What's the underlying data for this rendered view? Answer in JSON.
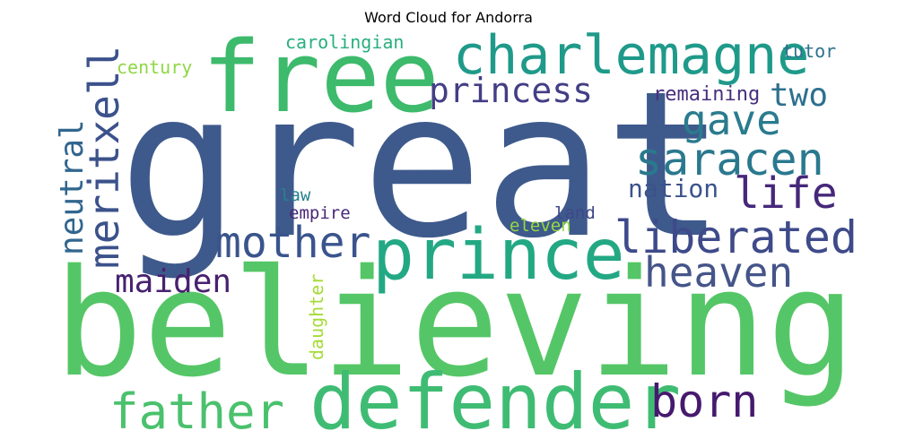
{
  "chart_data": {
    "type": "wordcloud",
    "title": "Word Cloud for Andorra",
    "words": [
      {
        "text": "great",
        "weight": 1.0,
        "orientation": "horizontal",
        "color": "#3e5a8c"
      },
      {
        "text": "believing",
        "weight": 0.9,
        "orientation": "horizontal",
        "color": "#55c667"
      },
      {
        "text": "free",
        "weight": 0.6,
        "orientation": "horizontal",
        "color": "#3dba6c"
      },
      {
        "text": "defender",
        "weight": 0.55,
        "orientation": "horizontal",
        "color": "#3fbc73"
      },
      {
        "text": "prince",
        "weight": 0.5,
        "orientation": "horizontal",
        "color": "#23a884"
      },
      {
        "text": "charlemagne",
        "weight": 0.4,
        "orientation": "horizontal",
        "color": "#1f9a8a"
      },
      {
        "text": "meritxell",
        "weight": 0.36,
        "orientation": "vertical",
        "color": "#3b528b"
      },
      {
        "text": "father",
        "weight": 0.32,
        "orientation": "horizontal",
        "color": "#4ac16d"
      },
      {
        "text": "liberated",
        "weight": 0.3,
        "orientation": "horizontal",
        "color": "#3e4a89"
      },
      {
        "text": "mother",
        "weight": 0.3,
        "orientation": "horizontal",
        "color": "#3a548c"
      },
      {
        "text": "saracen",
        "weight": 0.3,
        "orientation": "horizontal",
        "color": "#2a788e"
      },
      {
        "text": "heaven",
        "weight": 0.28,
        "orientation": "horizontal",
        "color": "#45558a"
      },
      {
        "text": "born",
        "weight": 0.28,
        "orientation": "horizontal",
        "color": "#46196e"
      },
      {
        "text": "gave",
        "weight": 0.27,
        "orientation": "horizontal",
        "color": "#2a7b8e"
      },
      {
        "text": "life",
        "weight": 0.26,
        "orientation": "horizontal",
        "color": "#46287a"
      },
      {
        "text": "neutral",
        "weight": 0.24,
        "orientation": "vertical",
        "color": "#31668e"
      },
      {
        "text": "princess",
        "weight": 0.24,
        "orientation": "horizontal",
        "color": "#433e85"
      },
      {
        "text": "maiden",
        "weight": 0.22,
        "orientation": "horizontal",
        "color": "#48216f"
      },
      {
        "text": "two",
        "weight": 0.21,
        "orientation": "horizontal",
        "color": "#2d708e"
      },
      {
        "text": "nation",
        "weight": 0.17,
        "orientation": "horizontal",
        "color": "#3b528b"
      },
      {
        "text": "remaining",
        "weight": 0.13,
        "orientation": "horizontal",
        "color": "#472f7d"
      },
      {
        "text": "carolingian",
        "weight": 0.12,
        "orientation": "horizontal",
        "color": "#29af7f"
      },
      {
        "text": "century",
        "weight": 0.12,
        "orientation": "horizontal",
        "color": "#8fd744"
      },
      {
        "text": "tutor",
        "weight": 0.12,
        "orientation": "horizontal",
        "color": "#2c728e"
      },
      {
        "text": "daughter",
        "weight": 0.12,
        "orientation": "vertical",
        "color": "#a5db36"
      },
      {
        "text": "law",
        "weight": 0.11,
        "orientation": "horizontal",
        "color": "#26818e"
      },
      {
        "text": "empire",
        "weight": 0.11,
        "orientation": "horizontal",
        "color": "#482878"
      },
      {
        "text": "land",
        "weight": 0.11,
        "orientation": "horizontal",
        "color": "#3f4788"
      },
      {
        "text": "eleven",
        "weight": 0.11,
        "orientation": "horizontal",
        "color": "#95d840"
      }
    ]
  }
}
